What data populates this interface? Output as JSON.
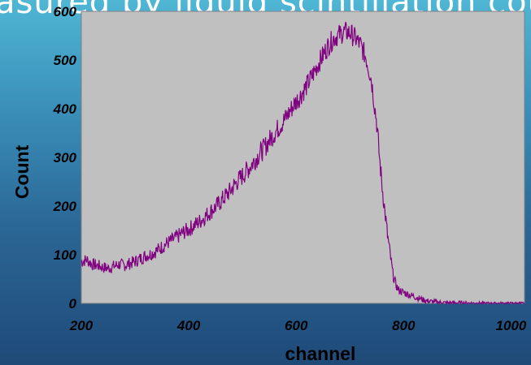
{
  "slide": {
    "title_fragment": "asured by liquid scintillation cou"
  },
  "chart_data": {
    "type": "line",
    "xlabel": "channel",
    "ylabel": "Count",
    "xlim": [
      200,
      1025
    ],
    "ylim": [
      0,
      600
    ],
    "x_ticks": [
      200,
      400,
      600,
      800,
      1000
    ],
    "y_ticks": [
      0,
      100,
      200,
      300,
      400,
      500,
      600
    ],
    "grid": false,
    "plot_background": "#c0c0c0",
    "line_color": "#800080",
    "series": [
      {
        "x": [
          200,
          210,
          220,
          230,
          240,
          250,
          260,
          270,
          280,
          290,
          300,
          310,
          320,
          330,
          340,
          350,
          360,
          370,
          380,
          390,
          400,
          410,
          420,
          430,
          440,
          450,
          460,
          470,
          480,
          490,
          500,
          510,
          520,
          530,
          540,
          550,
          560,
          570,
          580,
          590,
          600,
          610,
          620,
          630,
          640,
          650,
          660,
          670,
          680,
          690,
          700,
          710,
          720,
          730,
          740,
          750,
          755,
          760,
          765,
          770,
          775,
          780,
          785,
          790,
          800,
          810,
          820,
          830,
          840,
          850,
          860,
          870,
          880,
          900,
          950,
          1000,
          1025
        ],
        "y": [
          85,
          90,
          80,
          78,
          74,
          72,
          76,
          80,
          78,
          82,
          86,
          92,
          98,
          102,
          108,
          116,
          124,
          130,
          138,
          146,
          152,
          160,
          168,
          178,
          188,
          198,
          210,
          222,
          235,
          250,
          262,
          275,
          290,
          305,
          318,
          335,
          350,
          365,
          380,
          398,
          415,
          430,
          448,
          468,
          490,
          510,
          530,
          545,
          552,
          558,
          556,
          545,
          530,
          505,
          460,
          370,
          300,
          240,
          190,
          140,
          100,
          60,
          40,
          28,
          22,
          18,
          14,
          10,
          6,
          4,
          3,
          2,
          1,
          1,
          0,
          0,
          0
        ]
      }
    ]
  }
}
